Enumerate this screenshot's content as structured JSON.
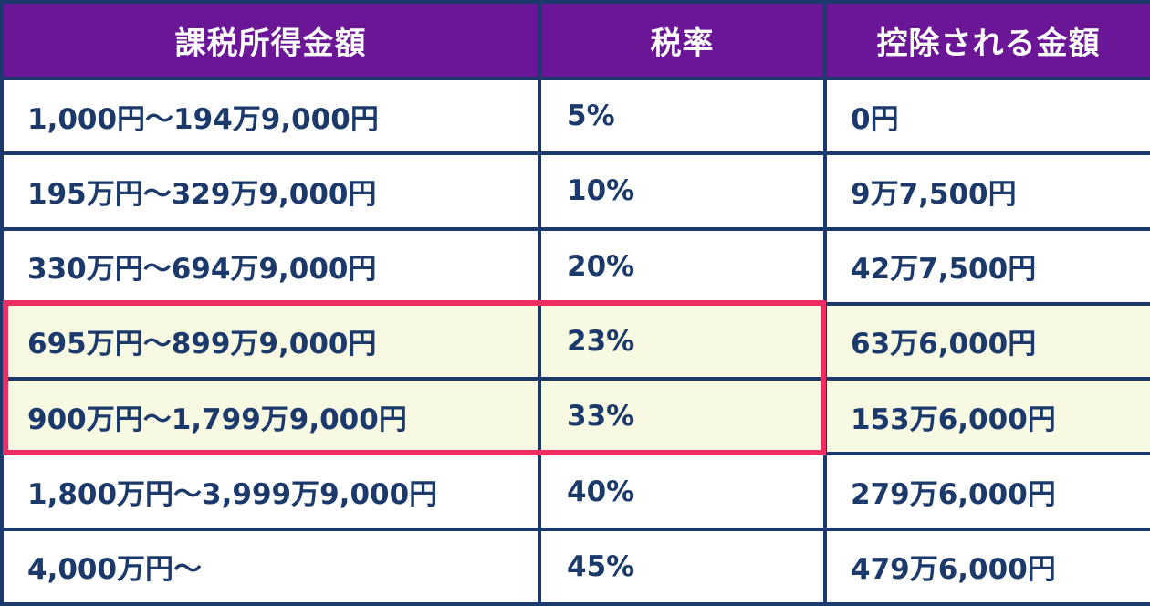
{
  "table": {
    "headers": [
      "課税所得金額",
      "税率",
      "控除される金額"
    ],
    "rows": [
      {
        "income": "1,000円〜194万9,000円",
        "rate": "5%",
        "deduction": "0円",
        "highlighted": false
      },
      {
        "income": "195万円〜329万9,000円",
        "rate": "10%",
        "deduction": "9万7,500円",
        "highlighted": false
      },
      {
        "income": "330万円〜694万9,000円",
        "rate": "20%",
        "deduction": "42万7,500円",
        "highlighted": false
      },
      {
        "income": "695万円〜899万9,000円",
        "rate": "23%",
        "deduction": "63万6,000円",
        "highlighted": true
      },
      {
        "income": "900万円〜1,799万9,000円",
        "rate": "33%",
        "deduction": "153万6,000円",
        "highlighted": true
      },
      {
        "income": "1,800万円〜3,999万9,000円",
        "rate": "40%",
        "deduction": "279万6,000円",
        "highlighted": false
      },
      {
        "income": "4,000万円〜",
        "rate": "45%",
        "deduction": "479万6,000円",
        "highlighted": false
      }
    ]
  },
  "colors": {
    "header_bg": "#6b1597",
    "border": "#1b3a6b",
    "text": "#1b3a6b",
    "highlight_bg": "#f8f9e3",
    "highlight_border": "#ee2e63"
  }
}
